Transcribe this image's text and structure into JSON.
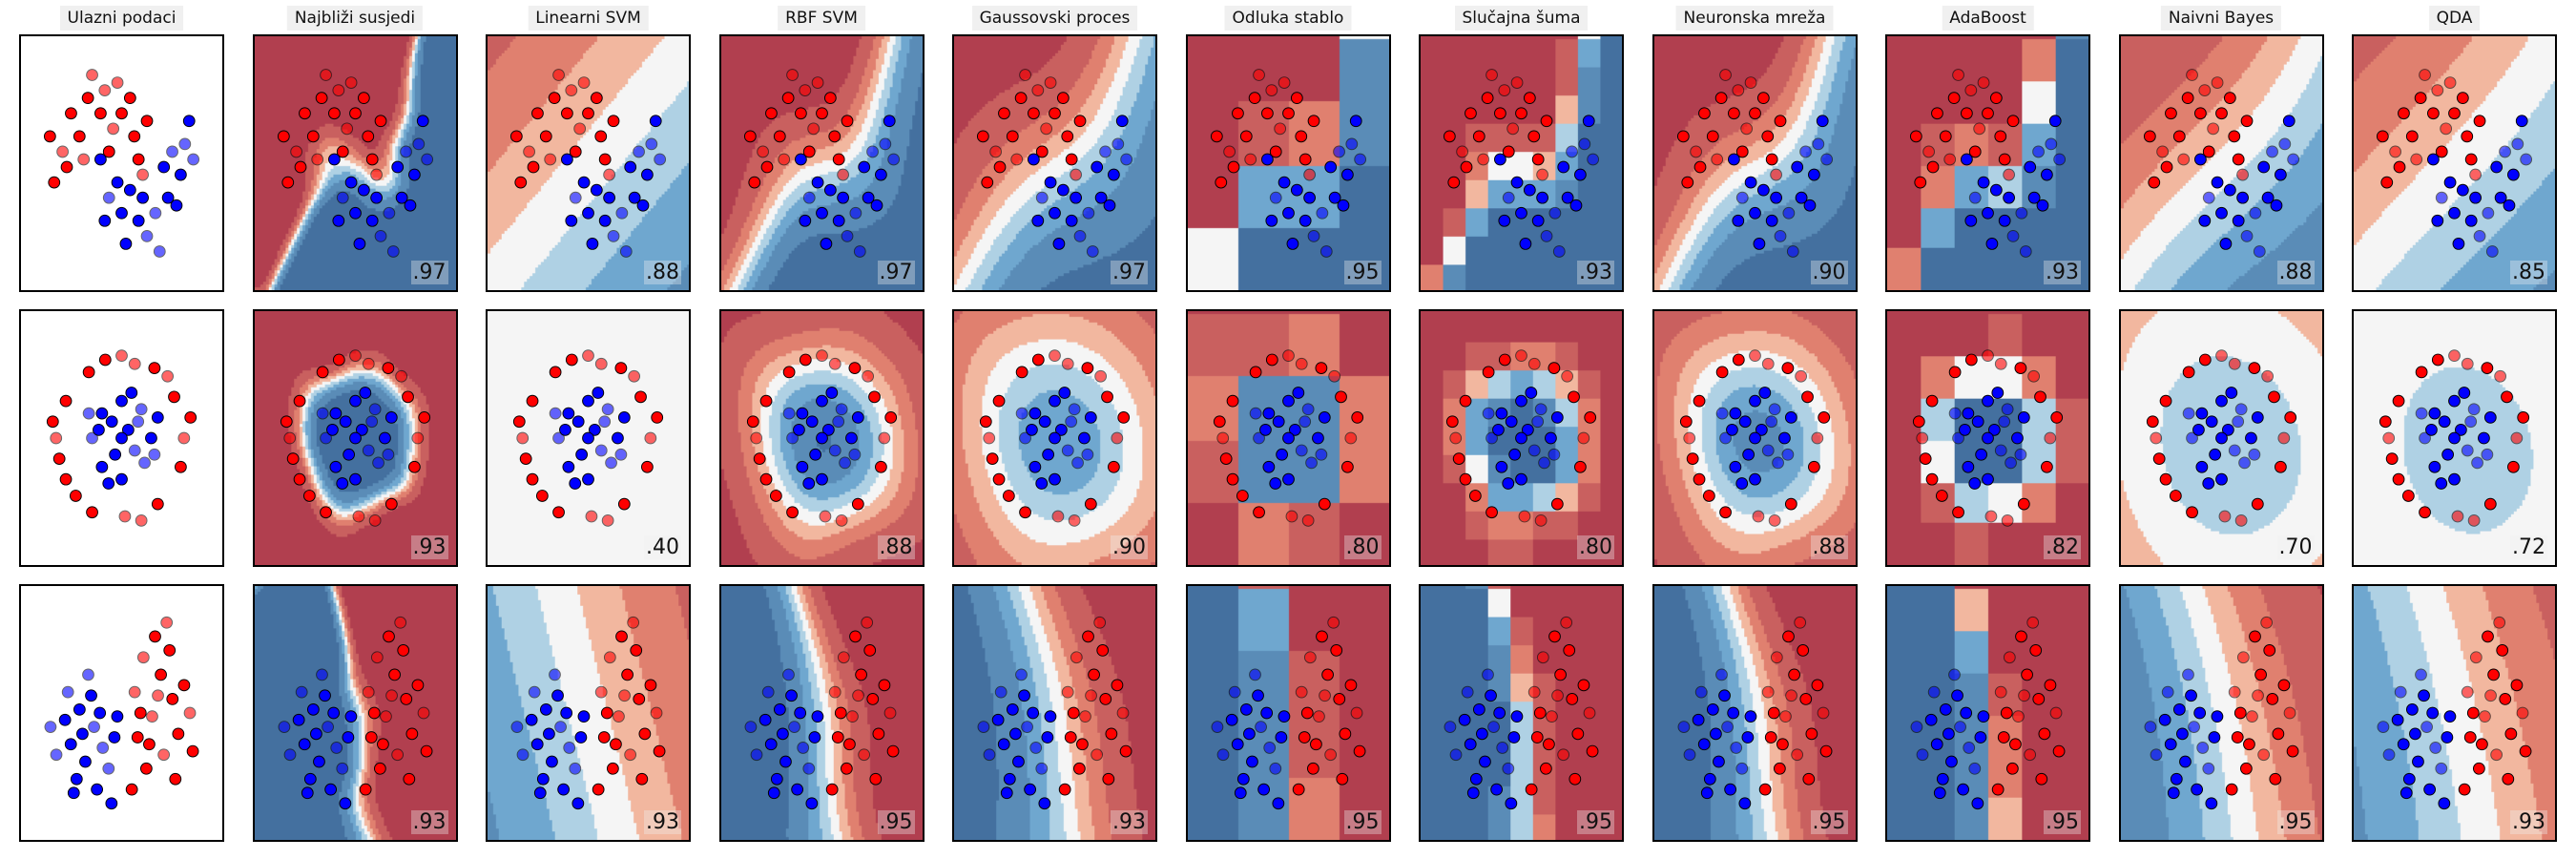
{
  "chart_data": {
    "type": "scatter",
    "titles": [
      "Ulazni podaci",
      "Najbliži susjedi",
      "Linearni SVM",
      "RBF SVM",
      "Gaussovski proces",
      "Odluka stablo",
      "Slučajna šuma",
      "Neuronska mreža",
      "AdaBoost",
      "Naivni Bayes",
      "QDA"
    ],
    "scores": [
      [
        ".97",
        ".88",
        ".97",
        ".97",
        ".95",
        ".93",
        ".90",
        ".93",
        ".88",
        ".85"
      ],
      [
        ".93",
        ".40",
        ".88",
        ".90",
        ".80",
        ".80",
        ".88",
        ".82",
        ".70",
        ".72"
      ],
      [
        ".93",
        ".93",
        ".95",
        ".93",
        ".95",
        ".95",
        ".95",
        ".95",
        ".95",
        ".93"
      ]
    ],
    "colors": {
      "class_0": "#ff0000",
      "class_1": "#0000ff",
      "colormap": "RdBu"
    },
    "grid": false,
    "datasets": [
      {
        "name": "",
        "xlim": [
          -1.6,
          2.6
        ],
        "ylim": [
          -1.2,
          1.7
        ],
        "points": [
          [
            -0.9,
            0.4,
            0
          ],
          [
            -0.7,
            0.9,
            0
          ],
          [
            -0.3,
            1.1,
            0
          ],
          [
            0.1,
            1.2,
            0
          ],
          [
            0.5,
            0.9,
            0
          ],
          [
            0.8,
            0.6,
            0
          ],
          [
            1.0,
            0.1,
            0
          ],
          [
            -1.1,
            0.0,
            0
          ],
          [
            -0.5,
            0.6,
            0
          ],
          [
            0.3,
            0.7,
            0
          ],
          [
            0.0,
            0.9,
            0
          ],
          [
            0.7,
            1.1,
            0
          ],
          [
            -0.2,
            1.4,
            0
          ],
          [
            0.9,
            0.3,
            0
          ],
          [
            -0.8,
            0.2,
            0
          ],
          [
            0.4,
            1.3,
            0
          ],
          [
            -1.2,
            0.6,
            0
          ],
          [
            0.2,
            0.4,
            0
          ],
          [
            -0.4,
            0.3,
            0
          ],
          [
            1.1,
            0.8,
            0
          ],
          [
            0.0,
            0.3,
            1
          ],
          [
            0.2,
            -0.2,
            1
          ],
          [
            0.5,
            -0.4,
            1
          ],
          [
            0.9,
            -0.5,
            1
          ],
          [
            1.3,
            -0.4,
            1
          ],
          [
            1.6,
            -0.2,
            1
          ],
          [
            1.9,
            0.1,
            1
          ],
          [
            2.0,
            0.5,
            1
          ],
          [
            0.1,
            -0.5,
            1
          ],
          [
            0.7,
            -0.1,
            1
          ],
          [
            1.1,
            -0.7,
            1
          ],
          [
            1.5,
            0.2,
            1
          ],
          [
            1.8,
            -0.3,
            1
          ],
          [
            2.2,
            0.3,
            1
          ],
          [
            0.4,
            0.0,
            1
          ],
          [
            1.0,
            -0.2,
            1
          ],
          [
            1.4,
            -0.9,
            1
          ],
          [
            0.6,
            -0.8,
            1
          ],
          [
            2.1,
            0.8,
            1
          ],
          [
            1.7,
            0.4,
            1
          ]
        ]
      },
      {
        "name": "",
        "xlim": [
          -1.35,
          1.35
        ],
        "ylim": [
          -1.35,
          1.35
        ],
        "points": [
          [
            0.95,
            0.0,
            0
          ],
          [
            0.8,
            0.5,
            0
          ],
          [
            0.5,
            0.85,
            0
          ],
          [
            0.0,
            1.0,
            0
          ],
          [
            -0.5,
            0.8,
            0
          ],
          [
            -0.85,
            0.45,
            0
          ],
          [
            -1.0,
            0.0,
            0
          ],
          [
            -0.85,
            -0.5,
            0
          ],
          [
            -0.45,
            -0.9,
            0
          ],
          [
            0.05,
            -0.95,
            0
          ],
          [
            0.55,
            -0.8,
            0
          ],
          [
            0.9,
            -0.35,
            0
          ],
          [
            0.7,
            0.75,
            0
          ],
          [
            -0.25,
            0.95,
            0
          ],
          [
            -0.7,
            -0.7,
            0
          ],
          [
            0.3,
            -1.0,
            0
          ],
          [
            1.05,
            0.25,
            0
          ],
          [
            -1.05,
            0.2,
            0
          ],
          [
            0.2,
            0.9,
            0
          ],
          [
            -0.95,
            -0.25,
            0
          ],
          [
            0.45,
            0.0,
            1
          ],
          [
            0.3,
            0.35,
            1
          ],
          [
            0.0,
            0.45,
            1
          ],
          [
            -0.3,
            0.3,
            1
          ],
          [
            -0.45,
            0.0,
            1
          ],
          [
            -0.3,
            -0.35,
            1
          ],
          [
            0.0,
            -0.5,
            1
          ],
          [
            0.35,
            -0.3,
            1
          ],
          [
            0.1,
            0.1,
            1
          ],
          [
            -0.15,
            0.2,
            1
          ],
          [
            0.2,
            -0.15,
            1
          ],
          [
            -0.1,
            -0.2,
            1
          ],
          [
            0.55,
            0.25,
            1
          ],
          [
            -0.5,
            0.3,
            1
          ],
          [
            0.15,
            0.55,
            1
          ],
          [
            -0.2,
            -0.55,
            1
          ],
          [
            0.5,
            -0.2,
            1
          ],
          [
            0.0,
            0.0,
            1
          ],
          [
            -0.35,
            0.1,
            1
          ],
          [
            0.25,
            0.2,
            1
          ]
        ]
      },
      {
        "name": "",
        "xlim": [
          -2.6,
          3.5
        ],
        "ylim": [
          -2.8,
          3.6
        ],
        "points": [
          [
            1.2,
            2.0,
            0
          ],
          [
            1.8,
            1.5,
            0
          ],
          [
            2.2,
            0.8,
            0
          ],
          [
            1.5,
            0.3,
            0
          ],
          [
            2.6,
            1.2,
            0
          ],
          [
            1.0,
            -0.3,
            0
          ],
          [
            1.9,
            -0.8,
            0
          ],
          [
            2.4,
            -0.2,
            0
          ],
          [
            1.3,
            -1.2,
            0
          ],
          [
            2.8,
            0.4,
            0
          ],
          [
            1.6,
            2.6,
            0
          ],
          [
            2.1,
            2.2,
            0
          ],
          [
            0.9,
            1.0,
            0
          ],
          [
            2.3,
            -1.5,
            0
          ],
          [
            1.1,
            0.4,
            0
          ],
          [
            1.7,
            0.9,
            0
          ],
          [
            2.9,
            -0.7,
            0
          ],
          [
            1.4,
            -0.5,
            0
          ],
          [
            2.0,
            3.0,
            0
          ],
          [
            0.8,
            -1.8,
            0
          ],
          [
            -1.0,
            0.5,
            1
          ],
          [
            -0.5,
            0.0,
            1
          ],
          [
            -1.3,
            -0.5,
            1
          ],
          [
            -0.8,
            -1.0,
            1
          ],
          [
            -0.2,
            -0.6,
            1
          ],
          [
            -1.5,
            0.2,
            1
          ],
          [
            -0.6,
            0.9,
            1
          ],
          [
            0.0,
            -1.2,
            1
          ],
          [
            -1.1,
            -1.5,
            1
          ],
          [
            -0.3,
            0.4,
            1
          ],
          [
            -1.8,
            -0.8,
            1
          ],
          [
            -0.9,
            -0.2,
            1
          ],
          [
            0.2,
            -0.3,
            1
          ],
          [
            -1.4,
            1.0,
            1
          ],
          [
            -0.4,
            -1.8,
            1
          ],
          [
            0.3,
            0.3,
            1
          ],
          [
            -0.7,
            1.5,
            1
          ],
          [
            -1.2,
            -1.9,
            1
          ],
          [
            0.1,
            -2.2,
            1
          ],
          [
            -2.0,
            0.0,
            1
          ]
        ]
      }
    ]
  }
}
